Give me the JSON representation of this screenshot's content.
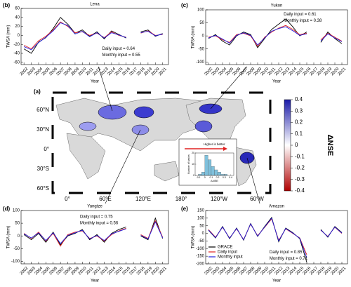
{
  "chart_data": [
    {
      "type": "line",
      "label": "(b)",
      "title": "Lena",
      "xlabel": "Year",
      "ylabel": "TWSA (mm)",
      "x": [
        2002,
        2003,
        2004,
        2005,
        2006,
        2007,
        2008,
        2009,
        2010,
        2011,
        2012,
        2013,
        2014,
        2015,
        2016,
        2017,
        2018,
        2019,
        2020,
        2021
      ],
      "xlim": [
        2001.6,
        2021.8
      ],
      "xticks": [
        2002,
        2003,
        2004,
        2005,
        2006,
        2007,
        2008,
        2009,
        2010,
        2011,
        2012,
        2013,
        2014,
        2015,
        2016,
        2017,
        2018,
        2019,
        2020,
        2021
      ],
      "ylim": [
        -65,
        60
      ],
      "yticks": [
        -60,
        -40,
        -20,
        0,
        20,
        40,
        60
      ],
      "series": [
        {
          "color": "#000000",
          "values": [
            -30,
            -40,
            -15,
            -5,
            15,
            40,
            25,
            5,
            12,
            -2,
            8,
            -8,
            10,
            2,
            -6,
            null,
            8,
            12,
            -2,
            4
          ]
        },
        {
          "color": "#e02020",
          "values": [
            -22,
            -30,
            -12,
            -2,
            12,
            30,
            20,
            6,
            8,
            0,
            5,
            -5,
            8,
            0,
            -4,
            null,
            5,
            10,
            0,
            2
          ]
        },
        {
          "color": "#2020e0",
          "values": [
            -25,
            -32,
            -16,
            -4,
            10,
            28,
            22,
            3,
            9,
            -3,
            6,
            -6,
            6,
            1,
            -5,
            null,
            6,
            9,
            -1,
            3
          ]
        }
      ],
      "annotations": [
        {
          "text": "Daily input = 0.64",
          "color": "#e02020"
        },
        {
          "text": "Monthly input = 0.55",
          "color": "#2020e0"
        }
      ]
    },
    {
      "type": "line",
      "label": "(c)",
      "title": "Yukon",
      "xlabel": "Year",
      "ylabel": "TWSA (mm)",
      "x": [
        2002,
        2003,
        2004,
        2005,
        2006,
        2007,
        2008,
        2009,
        2010,
        2011,
        2012,
        2013,
        2014,
        2015,
        2016,
        2017,
        2018,
        2019,
        2020,
        2021
      ],
      "xlim": [
        2001.6,
        2021.8
      ],
      "xticks": [
        2002,
        2003,
        2004,
        2005,
        2006,
        2007,
        2008,
        2009,
        2010,
        2011,
        2012,
        2013,
        2014,
        2015,
        2016,
        2017,
        2018,
        2019,
        2020,
        2021
      ],
      "ylim": [
        -110,
        100
      ],
      "yticks": [
        -100,
        -50,
        0,
        50,
        100
      ],
      "series": [
        {
          "color": "#000000",
          "values": [
            -10,
            5,
            -20,
            -35,
            0,
            15,
            5,
            -45,
            -10,
            25,
            45,
            65,
            35,
            0,
            15,
            null,
            -25,
            15,
            -10,
            -30
          ]
        },
        {
          "color": "#e02020",
          "values": [
            -5,
            0,
            -15,
            -25,
            5,
            10,
            0,
            -40,
            -5,
            15,
            30,
            40,
            25,
            5,
            10,
            null,
            -15,
            10,
            -5,
            -20
          ]
        },
        {
          "color": "#2020e0",
          "values": [
            -8,
            2,
            -12,
            -28,
            2,
            12,
            2,
            -35,
            -8,
            18,
            28,
            35,
            20,
            2,
            8,
            null,
            -20,
            8,
            -8,
            -22
          ]
        }
      ],
      "annotations": [
        {
          "text": "Daily input = 0.61",
          "color": "#e02020"
        },
        {
          "text": "Monthly input = 0.38",
          "color": "#2020e0"
        }
      ]
    },
    {
      "type": "line",
      "label": "(d)",
      "title": "Yangtze",
      "xlabel": "Year",
      "ylabel": "TWSA (mm)",
      "x": [
        2002,
        2003,
        2004,
        2005,
        2006,
        2007,
        2008,
        2009,
        2010,
        2011,
        2012,
        2013,
        2014,
        2015,
        2016,
        2017,
        2018,
        2019,
        2020,
        2021
      ],
      "xlim": [
        2001.6,
        2021.8
      ],
      "xticks": [
        2002,
        2003,
        2004,
        2005,
        2006,
        2007,
        2008,
        2009,
        2010,
        2011,
        2012,
        2013,
        2014,
        2015,
        2016,
        2017,
        2018,
        2019,
        2020,
        2021
      ],
      "ylim": [
        -110,
        100
      ],
      "yticks": [
        -100,
        -50,
        0,
        50,
        100
      ],
      "series": [
        {
          "color": "#000000",
          "values": [
            5,
            -15,
            10,
            -25,
            15,
            -35,
            0,
            10,
            25,
            -15,
            5,
            -25,
            10,
            25,
            35,
            null,
            0,
            -15,
            70,
            -10
          ]
        },
        {
          "color": "#e02020",
          "values": [
            10,
            -10,
            15,
            -20,
            10,
            -40,
            5,
            15,
            20,
            -10,
            0,
            -20,
            5,
            20,
            30,
            null,
            5,
            -10,
            60,
            -5
          ]
        },
        {
          "color": "#2020e0",
          "values": [
            8,
            -8,
            12,
            -18,
            12,
            -30,
            2,
            12,
            22,
            -12,
            2,
            -18,
            8,
            18,
            28,
            null,
            2,
            -12,
            55,
            -8
          ]
        }
      ],
      "annotations": [
        {
          "text": "Daily input = 0.75",
          "color": "#e02020"
        },
        {
          "text": "Monthly input = 0.56",
          "color": "#2020e0"
        }
      ]
    },
    {
      "type": "line",
      "label": "(e)",
      "title": "Amazon",
      "xlabel": "Year",
      "ylabel": "TWSA (mm)",
      "x": [
        2002,
        2003,
        2004,
        2005,
        2006,
        2007,
        2008,
        2009,
        2010,
        2011,
        2012,
        2013,
        2014,
        2015,
        2016,
        2017,
        2018,
        2019,
        2020,
        2021
      ],
      "xlim": [
        2001.6,
        2021.8
      ],
      "xticks": [
        2002,
        2003,
        2004,
        2005,
        2006,
        2007,
        2008,
        2009,
        2010,
        2011,
        2012,
        2013,
        2014,
        2015,
        2016,
        2017,
        2018,
        2019,
        2020,
        2021
      ],
      "ylim": [
        -200,
        150
      ],
      "yticks": [
        -200,
        -150,
        -100,
        -50,
        0,
        50,
        100,
        150
      ],
      "series": [
        {
          "name": "GRACE",
          "color": "#000000",
          "values": [
            20,
            -30,
            45,
            -35,
            35,
            -45,
            65,
            -20,
            45,
            105,
            -55,
            35,
            5,
            -35,
            -190,
            null,
            25,
            -25,
            45,
            5
          ]
        },
        {
          "name": "Daily input",
          "color": "#e02020",
          "values": [
            25,
            -25,
            40,
            -30,
            30,
            -40,
            60,
            -15,
            40,
            95,
            -45,
            30,
            0,
            -30,
            -140,
            null,
            20,
            -20,
            40,
            0
          ]
        },
        {
          "name": "Monthly input",
          "color": "#2020e0",
          "values": [
            22,
            -28,
            42,
            -32,
            32,
            -42,
            62,
            -18,
            42,
            100,
            -50,
            32,
            2,
            -32,
            -160,
            null,
            22,
            -22,
            42,
            2
          ]
        }
      ],
      "annotations": [
        {
          "text": "Daily input = 0.85",
          "color": "#e02020"
        },
        {
          "text": "Monthly input = 0.71",
          "color": "#2020e0"
        }
      ]
    },
    {
      "type": "map",
      "label": "(a)",
      "lat_labels": [
        "60°N",
        "30°N",
        "0°",
        "30°S",
        "60°S"
      ],
      "lon_labels": [
        "0°",
        "60°E",
        "120°E",
        "180°",
        "120°W",
        "60°W"
      ],
      "colorbar": {
        "label": "ΔNSE",
        "lim": [
          -0.4,
          0.4
        ],
        "ticks": [
          0.4,
          0.3,
          0.2,
          0.1,
          0,
          -0.1,
          -0.2,
          -0.3,
          -0.4
        ]
      }
    },
    {
      "type": "histogram",
      "title": "Higher is better",
      "xlabel": "ΔNSE",
      "ylabel": "Number of basins",
      "color": "#7fc0dc",
      "bins": [
        -0.1,
        -0.05,
        0,
        0.05,
        0.1,
        0.15,
        0.2,
        0.25,
        0.3,
        0.35
      ],
      "counts": [
        1,
        3,
        18,
        14,
        8,
        5,
        3,
        1,
        1
      ],
      "xlim": [
        -0.15,
        0.45
      ],
      "xticks": [
        -0.1,
        0,
        0.1,
        0.2,
        0.3,
        0.4
      ],
      "ylim": [
        0,
        20
      ],
      "yticks": [
        0,
        10,
        20
      ]
    }
  ]
}
